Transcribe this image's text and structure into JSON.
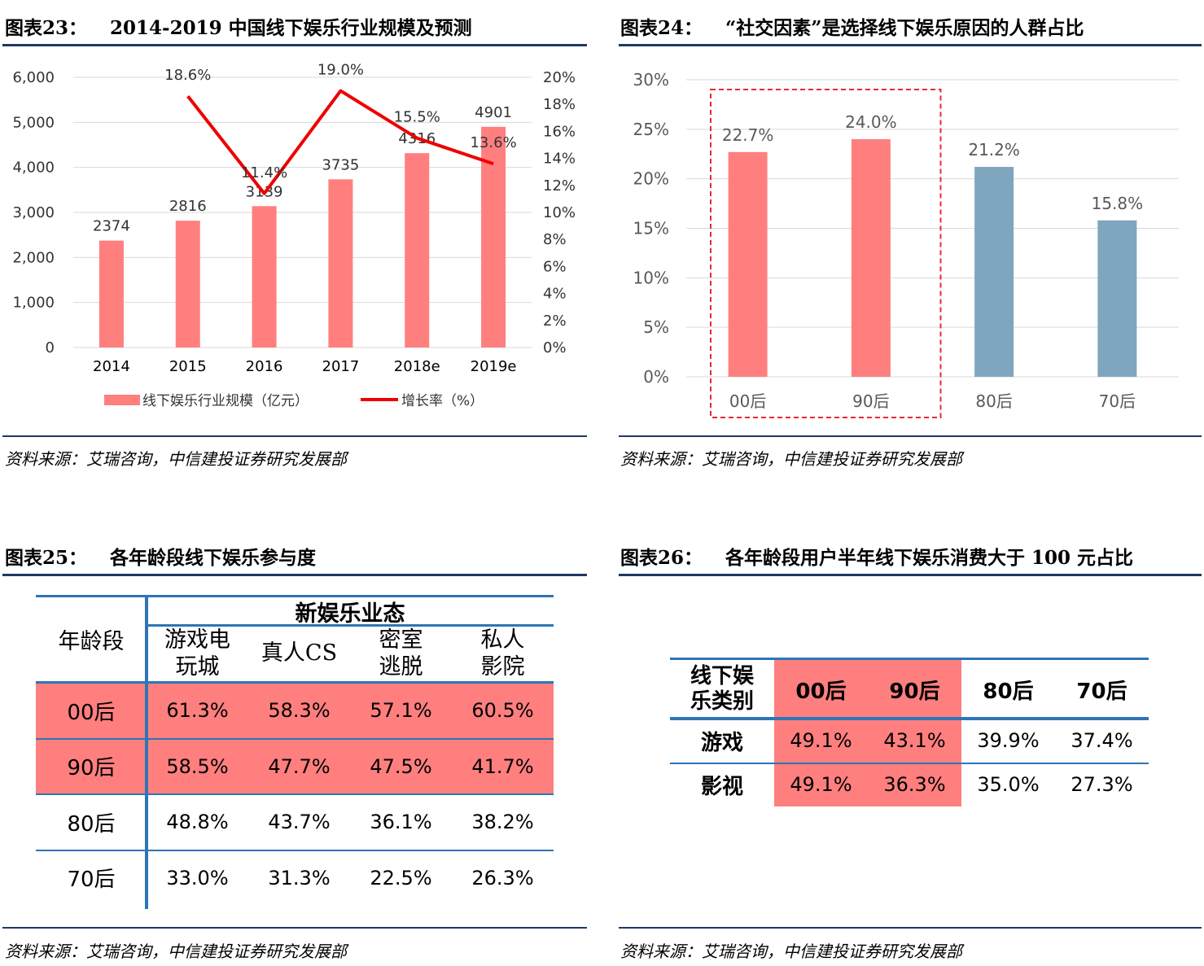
{
  "panels": {
    "p23": {
      "num": "图表23：",
      "title": "2014-2019 中国线下娱乐行业规模及预测",
      "source": "资料来源：艾瑞咨询，中信建投证券研究发展部"
    },
    "p24": {
      "num": "图表24：",
      "title": "“社交因素”是选择线下娱乐原因的人群占比",
      "source": "资料来源：艾瑞咨询，中信建投证券研究发展部"
    },
    "p25": {
      "num": "图表25：",
      "title": "各年龄段线下娱乐参与度",
      "source": "资料来源：艾瑞咨询，中信建投证券研究发展部"
    },
    "p26": {
      "num": "图表26：",
      "title": "各年龄段用户半年线下娱乐消费大于 100 元占比",
      "source": "资料来源：艾瑞咨询，中信建投证券研究发展部"
    }
  },
  "chart_data": [
    {
      "type": "bar",
      "title": "2014-2019 中国线下娱乐行业规模及预测",
      "categories": [
        "2014",
        "2015",
        "2016",
        "2017",
        "2018e",
        "2019e"
      ],
      "series": [
        {
          "name": "线下娱乐行业规模（亿元）",
          "type": "bar",
          "values": [
            2374,
            2816,
            3139,
            3735,
            4316,
            4901
          ],
          "labels": [
            "2374",
            "2816",
            "3139",
            "3735",
            "4316",
            "4901"
          ],
          "color": "#ff7f7f"
        },
        {
          "name": "增长率（%）",
          "type": "line",
          "values": [
            null,
            18.6,
            11.4,
            19.0,
            15.5,
            13.6
          ],
          "labels": [
            "",
            "18.6%",
            "11.4%",
            "19.0%",
            "15.5%",
            "13.6%"
          ],
          "color": "#ee0000"
        }
      ],
      "y_left": {
        "ticks": [
          "0",
          "1,000",
          "2,000",
          "3,000",
          "4,000",
          "5,000",
          "6,000"
        ],
        "lim": [
          0,
          6000
        ]
      },
      "y_right": {
        "ticks": [
          "0%",
          "2%",
          "4%",
          "6%",
          "8%",
          "10%",
          "12%",
          "14%",
          "16%",
          "18%",
          "20%"
        ],
        "lim": [
          0,
          20
        ]
      },
      "grid": true,
      "legend": "bottom"
    },
    {
      "type": "bar",
      "title": "“社交因素”是选择线下娱乐原因的人群占比",
      "categories": [
        "00后",
        "90后",
        "80后",
        "70后"
      ],
      "values": [
        22.7,
        24.0,
        21.2,
        15.8
      ],
      "labels": [
        "22.7%",
        "24.0%",
        "21.2%",
        "15.8%"
      ],
      "colors": [
        "#ff7f7f",
        "#ff7f7f",
        "#7fa6bf",
        "#7fa6bf"
      ],
      "y": {
        "ticks": [
          "0%",
          "5%",
          "10%",
          "15%",
          "20%",
          "25%",
          "30%"
        ],
        "lim": [
          0,
          30
        ]
      },
      "grid": true,
      "highlight": "00后, 90后 (dashed red box)"
    },
    {
      "type": "table",
      "title": "各年龄段线下娱乐参与度",
      "corner": "年龄段",
      "group_header": "新娱乐业态",
      "columns": [
        "游戏电玩城",
        "真人CS",
        "密室逃脱",
        "私人影院"
      ],
      "columns_display": [
        [
          "游戏电",
          "玩城"
        ],
        [
          "真人CS"
        ],
        [
          "密室",
          "逃脱"
        ],
        [
          "私人",
          "影院"
        ]
      ],
      "rows": [
        {
          "label": "00后",
          "values": [
            "61.3%",
            "58.3%",
            "57.1%",
            "60.5%"
          ],
          "highlight": true
        },
        {
          "label": "90后",
          "values": [
            "58.5%",
            "47.7%",
            "47.5%",
            "41.7%"
          ],
          "highlight": true
        },
        {
          "label": "80后",
          "values": [
            "48.8%",
            "43.7%",
            "36.1%",
            "38.2%"
          ],
          "highlight": false
        },
        {
          "label": "70后",
          "values": [
            "33.0%",
            "31.3%",
            "22.5%",
            "26.3%"
          ],
          "highlight": false
        }
      ],
      "highlight_color": "#ff7f7f"
    },
    {
      "type": "table",
      "title": "各年龄段用户半年线下娱乐消费大于 100 元占比",
      "corner": "线下娱乐类别",
      "corner_display": [
        "线下娱",
        "乐类别"
      ],
      "columns": [
        "00后",
        "90后",
        "80后",
        "70后"
      ],
      "rows": [
        {
          "label": "游戏",
          "values": [
            "49.1%",
            "43.1%",
            "39.9%",
            "37.4%"
          ]
        },
        {
          "label": "影视",
          "values": [
            "49.1%",
            "36.3%",
            "35.0%",
            "27.3%"
          ]
        }
      ],
      "highlight_columns": [
        "00后",
        "90后"
      ],
      "highlight_color": "#ff7f7f"
    }
  ]
}
